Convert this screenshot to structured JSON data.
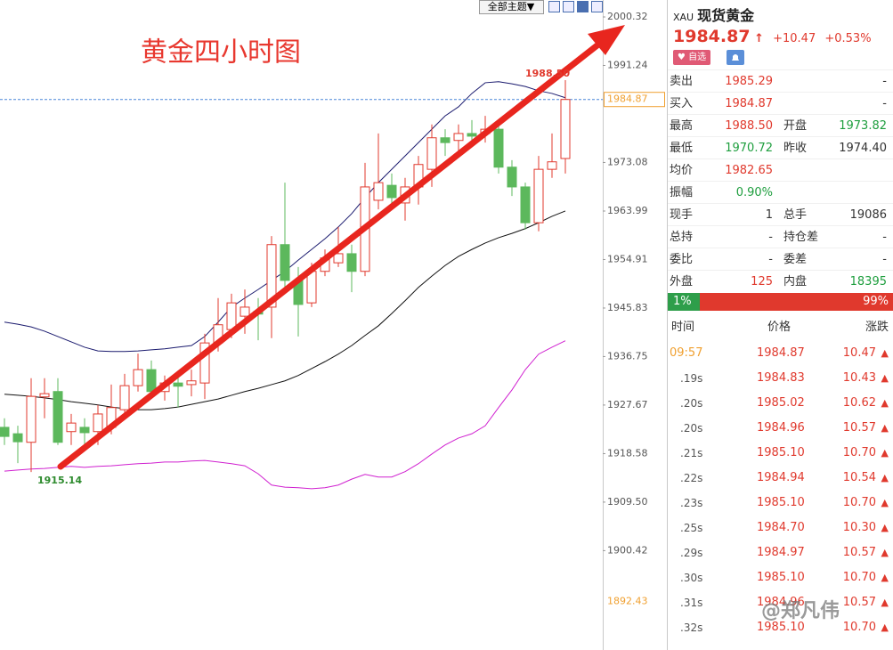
{
  "toolbar": {
    "theme_button": "全部主题▼"
  },
  "chart_data": {
    "type": "candlestick",
    "title": "黄金四小时图",
    "ylim": [
      1881.82,
      2003.49
    ],
    "yticks": [
      2000.32,
      1991.24,
      1973.08,
      1963.99,
      1954.91,
      1945.83,
      1936.75,
      1927.67,
      1918.58,
      {
        "value": 1909.5,
        "label": "1909.50"
      },
      1900.42
    ],
    "low_tick": {
      "value": 1892.43,
      "label": "1892.43",
      "color": "#f0a030"
    },
    "last_price": {
      "value": 1984.87,
      "label": "1984.87",
      "color": "#f0a030",
      "line_color": "#4a86d8"
    },
    "high_label": "1988.50",
    "low_label": "1915.14",
    "up_color": "#e0392d",
    "down_color": "#5cb85c",
    "ohlc": {
      "open": [
        1923.5,
        1922.3,
        1920.7,
        1929.2,
        1930.2,
        1922.7,
        1923.5,
        1922.7,
        1923.5,
        1926.8,
        1931.3,
        1934.3,
        1930.2,
        1931.8,
        1931.5,
        1931.8,
        1939.3,
        1941.8,
        1944.3,
        1945.2,
        1946.0,
        1957.7,
        1951.0,
        1946.8,
        1952.7,
        1954.3,
        1956.0,
        1952.7,
        1966.0,
        1968.8,
        1965.5,
        1968.5,
        1971.8,
        1977.7,
        1977.2,
        1978.5,
        1978.5,
        1979.3,
        1972.2,
        1968.5,
        1961.8,
        1971.8,
        1973.82
      ],
      "high": [
        1925.2,
        1923.8,
        1932.7,
        1932.7,
        1932.7,
        1926.0,
        1925.2,
        1927.7,
        1931.5,
        1933.5,
        1937.3,
        1936.0,
        1933.2,
        1933.2,
        1934.3,
        1941.0,
        1947.7,
        1948.5,
        1949.3,
        1947.7,
        1959.3,
        1969.3,
        1953.5,
        1954.3,
        1956.8,
        1961.0,
        1957.7,
        1973.0,
        1978.5,
        1971.0,
        1970.2,
        1974.3,
        1980.2,
        1979.3,
        1980.2,
        1981.0,
        1981.8,
        1980.2,
        1973.5,
        1969.3,
        1974.3,
        1978.5,
        1988.5
      ],
      "low": [
        1920.2,
        1916.8,
        1915.14,
        1925.2,
        1920.2,
        1920.2,
        1919.3,
        1920.2,
        1922.2,
        1926.0,
        1930.2,
        1929.3,
        1928.5,
        1927.2,
        1929.3,
        1928.8,
        1937.7,
        1940.2,
        1941.0,
        1939.8,
        1940.2,
        1948.5,
        1940.5,
        1946.0,
        1951.8,
        1953.5,
        1948.8,
        1951.8,
        1964.3,
        1964.3,
        1962.2,
        1965.2,
        1968.5,
        1974.3,
        1975.2,
        1976.0,
        1976.8,
        1971.0,
        1966.8,
        1960.5,
        1960.2,
        1970.2,
        1971.0
      ],
      "close": [
        1921.8,
        1920.8,
        1929.3,
        1929.8,
        1920.7,
        1924.3,
        1922.5,
        1926.0,
        1927.2,
        1931.3,
        1934.3,
        1930.2,
        1931.8,
        1931.2,
        1932.2,
        1939.3,
        1942.7,
        1946.8,
        1946.0,
        1944.7,
        1957.7,
        1951.0,
        1946.5,
        1952.7,
        1955.2,
        1956.0,
        1952.7,
        1968.5,
        1969.3,
        1966.5,
        1968.5,
        1972.7,
        1977.7,
        1976.8,
        1978.5,
        1978.0,
        1979.3,
        1972.2,
        1968.5,
        1961.8,
        1971.8,
        1973.2,
        1984.87
      ]
    },
    "lines": [
      {
        "color": "#1a1a6e",
        "values": [
          1943.2,
          1942.8,
          1942.3,
          1941.5,
          1940.5,
          1939.5,
          1938.5,
          1937.8,
          1937.7,
          1937.7,
          1937.8,
          1938.0,
          1938.2,
          1938.5,
          1938.8,
          1940.5,
          1943.2,
          1946.0,
          1947.7,
          1949.3,
          1951.0,
          1952.7,
          1954.8,
          1956.8,
          1958.8,
          1961.0,
          1963.5,
          1966.5,
          1969.3,
          1971.8,
          1974.3,
          1976.8,
          1979.3,
          1981.8,
          1983.5,
          1986.0,
          1988.0,
          1988.2,
          1987.8,
          1987.3,
          1986.5,
          1986.0,
          1985.2
        ]
      },
      {
        "color": "#111111",
        "values": [
          1929.7,
          1929.5,
          1929.3,
          1929.0,
          1928.7,
          1928.3,
          1928.0,
          1927.7,
          1927.3,
          1927.0,
          1926.8,
          1926.8,
          1927.0,
          1927.3,
          1927.8,
          1928.3,
          1928.8,
          1929.5,
          1930.2,
          1930.8,
          1931.5,
          1932.2,
          1933.2,
          1934.5,
          1935.8,
          1937.2,
          1938.8,
          1940.7,
          1942.5,
          1944.8,
          1947.2,
          1949.7,
          1951.8,
          1953.8,
          1955.5,
          1956.8,
          1958.0,
          1959.0,
          1959.8,
          1960.7,
          1961.8,
          1963.0,
          1964.0
        ]
      },
      {
        "color": "#d020d0",
        "values": [
          1915.3,
          1915.5,
          1915.7,
          1915.8,
          1916.0,
          1916.2,
          1916.0,
          1916.2,
          1916.3,
          1916.5,
          1916.7,
          1916.8,
          1917.0,
          1917.0,
          1917.2,
          1917.3,
          1917.0,
          1916.7,
          1916.3,
          1914.8,
          1912.7,
          1912.3,
          1912.2,
          1912.0,
          1912.2,
          1912.7,
          1913.8,
          1914.7,
          1914.2,
          1914.2,
          1915.2,
          1916.7,
          1918.5,
          1920.2,
          1921.5,
          1922.3,
          1923.8,
          1927.2,
          1930.5,
          1934.3,
          1937.2,
          1938.5,
          1939.7
        ]
      }
    ]
  },
  "quote": {
    "symbol": "XAU",
    "name": "现货黄金",
    "price": "1984.87",
    "change": "+10.47",
    "change_pct": "+0.53%",
    "watch_button": "自选",
    "rows": [
      {
        "label": "卖出",
        "value": "1985.29",
        "value_color": "#e0392d",
        "value2": "-",
        "value2_color": "#333333"
      },
      {
        "label": "买入",
        "value": "1984.87",
        "value_color": "#e0392d",
        "value2": "-",
        "value2_color": "#333333"
      },
      {
        "label": "最高",
        "value": "1988.50",
        "value_color": "#e0392d",
        "label2": "开盘",
        "value2": "1973.82",
        "value2_color": "#1e9e3e"
      },
      {
        "label": "最低",
        "value": "1970.72",
        "value_color": "#1e9e3e",
        "label2": "昨收",
        "value2": "1974.40",
        "value2_color": "#333333"
      },
      {
        "label": "均价",
        "value": "1982.65",
        "value_color": "#e0392d"
      },
      {
        "label": "振幅",
        "value": "0.90%",
        "value_color": "#1e9e3e"
      },
      {
        "label": "现手",
        "value": "1",
        "value_color": "#333333",
        "label2": "总手",
        "value2": "19086",
        "value2_color": "#333333"
      },
      {
        "label": "总持",
        "value": "-",
        "value_color": "#333333",
        "label2": "持仓差",
        "value2": "-",
        "value2_color": "#333333"
      },
      {
        "label": "委比",
        "value": "-",
        "value_color": "#333333",
        "label2": "委差",
        "value2": "-",
        "value2_color": "#333333"
      },
      {
        "label": "外盘",
        "value": "125",
        "value_color": "#e0392d",
        "label2": "内盘",
        "value2": "18395",
        "value2_color": "#1e9e3e"
      }
    ],
    "ratio": {
      "buy": "1%",
      "sell": "99%"
    }
  },
  "trades": {
    "header": [
      "时间",
      "价格",
      "涨跌"
    ],
    "rows": [
      {
        "time": "09:57",
        "price": "1984.87",
        "change": "10.47"
      },
      {
        "time": ".19s",
        "price": "1984.83",
        "change": "10.43"
      },
      {
        "time": ".20s",
        "price": "1985.02",
        "change": "10.62"
      },
      {
        "time": ".20s",
        "price": "1984.96",
        "change": "10.57"
      },
      {
        "time": ".21s",
        "price": "1985.10",
        "change": "10.70"
      },
      {
        "time": ".22s",
        "price": "1984.94",
        "change": "10.54"
      },
      {
        "time": ".23s",
        "price": "1985.10",
        "change": "10.70"
      },
      {
        "time": ".25s",
        "price": "1984.70",
        "change": "10.30"
      },
      {
        "time": ".29s",
        "price": "1984.97",
        "change": "10.57"
      },
      {
        "time": ".30s",
        "price": "1985.10",
        "change": "10.70"
      },
      {
        "time": ".31s",
        "price": "1984.96",
        "change": "10.57"
      },
      {
        "time": ".32s",
        "price": "1985.10",
        "change": "10.70"
      }
    ]
  },
  "watermark": "@郑凡伟"
}
